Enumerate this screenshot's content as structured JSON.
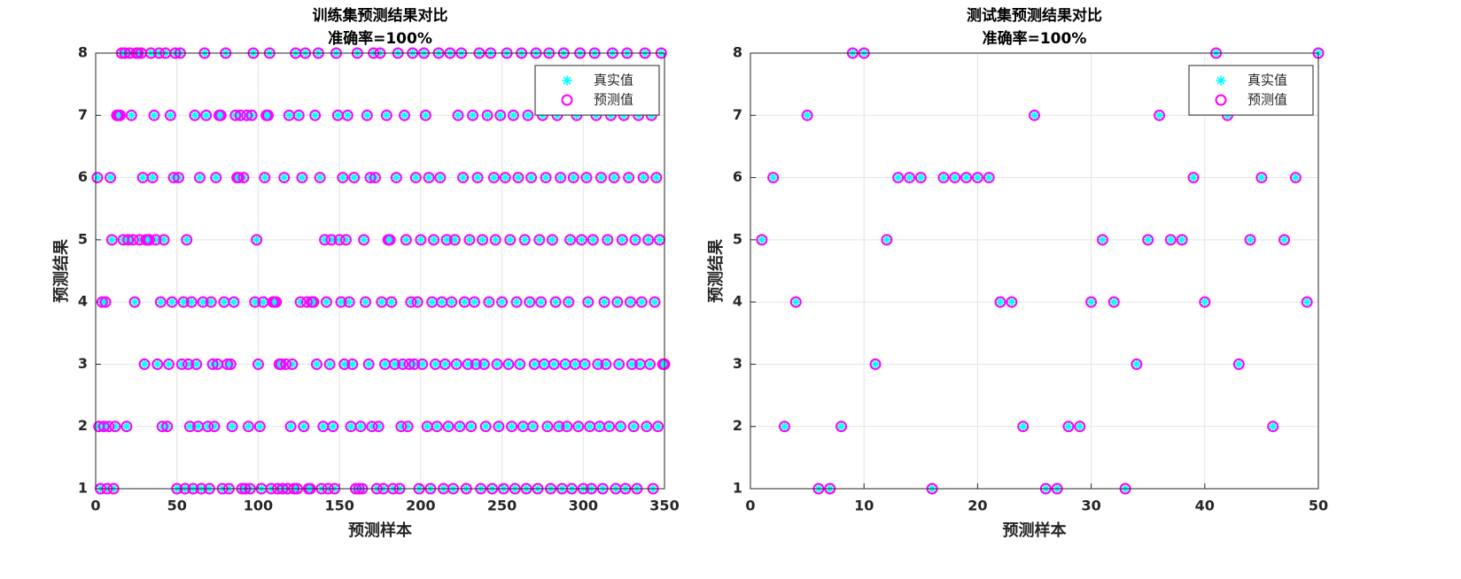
{
  "chart_data": [
    {
      "type": "scatter",
      "title": "训练集预测结果对比",
      "subtitle": "准确率=100%",
      "x_label": "预测样本",
      "y_label": "预测结果",
      "xlim": [
        0,
        350
      ],
      "xticks": [
        0,
        50,
        100,
        150,
        200,
        250,
        300,
        350
      ],
      "ylim": [
        1,
        8
      ],
      "yticks": [
        1,
        2,
        3,
        4,
        5,
        6,
        7,
        8
      ],
      "grid": true,
      "legend": "northeast",
      "x": [
        1,
        2,
        3,
        4,
        5,
        6,
        7,
        8,
        9,
        10,
        11,
        12,
        13,
        14,
        15,
        16,
        17,
        18,
        19,
        20,
        21,
        22,
        23,
        24,
        25,
        26,
        27,
        28,
        29,
        30,
        31,
        32,
        33,
        34,
        35,
        36,
        37,
        38,
        39,
        40,
        41,
        42,
        43,
        44,
        45,
        46,
        47,
        48,
        49,
        50,
        51,
        52,
        53,
        54,
        55,
        56,
        57,
        58,
        59,
        60,
        61,
        62,
        63,
        64,
        65,
        66,
        67,
        68,
        69,
        70,
        71,
        72,
        73,
        74,
        75,
        76,
        77,
        78,
        79,
        80,
        81,
        82,
        83,
        84,
        85,
        86,
        87,
        88,
        89,
        90,
        91,
        92,
        93,
        94,
        95,
        96,
        97,
        98,
        99,
        100,
        101,
        102,
        103,
        104,
        105,
        106,
        107,
        108,
        109,
        110,
        111,
        112,
        113,
        114,
        115,
        116,
        117,
        118,
        119,
        120,
        121,
        122,
        123,
        124,
        125,
        126,
        127,
        128,
        129,
        130,
        131,
        132,
        133,
        134,
        135,
        136,
        137,
        138,
        139,
        140,
        141,
        142,
        143,
        144,
        145,
        146,
        147,
        148,
        149,
        150,
        151,
        152,
        153,
        154,
        155,
        156,
        157,
        158,
        159,
        160,
        161,
        162,
        163,
        164,
        165,
        166,
        167,
        168,
        169,
        170,
        171,
        172,
        173,
        174,
        175,
        176,
        177,
        178,
        179,
        180,
        181,
        182,
        183,
        184,
        185,
        186,
        187,
        188,
        189,
        190,
        191,
        192,
        193,
        194,
        195,
        196,
        197,
        198,
        199,
        200,
        201,
        202,
        203,
        204,
        205,
        206,
        207,
        208,
        209,
        210,
        211,
        212,
        213,
        214,
        215,
        216,
        217,
        218,
        219,
        220,
        221,
        222,
        223,
        224,
        225,
        226,
        227,
        228,
        229,
        230,
        231,
        232,
        233,
        234,
        235,
        236,
        237,
        238,
        239,
        240,
        241,
        242,
        243,
        244,
        245,
        246,
        247,
        248,
        249,
        250,
        251,
        252,
        253,
        254,
        255,
        256,
        257,
        258,
        259,
        260,
        261,
        262,
        263,
        264,
        265,
        266,
        267,
        268,
        269,
        270,
        271,
        272,
        273,
        274,
        275,
        276,
        277,
        278,
        279,
        280,
        281,
        282,
        283,
        284,
        285,
        286,
        287,
        288,
        289,
        290,
        291,
        292,
        293,
        294,
        295,
        296,
        297,
        298,
        299,
        300,
        301,
        302,
        303,
        304,
        305,
        306,
        307,
        308,
        309,
        310,
        311,
        312,
        313,
        314,
        315,
        316,
        317,
        318,
        319,
        320,
        321,
        322,
        323,
        324,
        325,
        326,
        327,
        328,
        329,
        330,
        331,
        332,
        333,
        334,
        335,
        336,
        337,
        338,
        339,
        340,
        341,
        342,
        343,
        344,
        345,
        346,
        347,
        348,
        349,
        350
      ],
      "series": [
        {
          "name": "真实值",
          "color": "#00ffff",
          "marker": "asterisk",
          "values": [
            6,
            2,
            1,
            4,
            2,
            4,
            1,
            2,
            6,
            5,
            1,
            2,
            7,
            7,
            7,
            8,
            5,
            8,
            2,
            5,
            8,
            7,
            5,
            4,
            8,
            8,
            5,
            8,
            6,
            3,
            5,
            5,
            5,
            8,
            6,
            7,
            5,
            3,
            8,
            4,
            2,
            5,
            8,
            2,
            3,
            7,
            4,
            6,
            8,
            1,
            6,
            8,
            3,
            4,
            1,
            5,
            3,
            2,
            4,
            1,
            7,
            3,
            2,
            6,
            1,
            4,
            8,
            7,
            2,
            1,
            4,
            3,
            2,
            6,
            3,
            7,
            7,
            1,
            4,
            8,
            3,
            1,
            3,
            2,
            4,
            7,
            6,
            6,
            7,
            1,
            6,
            1,
            7,
            2,
            1,
            7,
            8,
            4,
            5,
            3,
            2,
            1,
            4,
            6,
            7,
            7,
            8,
            1,
            4,
            4,
            4,
            1,
            3,
            3,
            1,
            6,
            3,
            1,
            7,
            2,
            3,
            1,
            8,
            1,
            7,
            4,
            6,
            2,
            8,
            4,
            1,
            1,
            4,
            4,
            7,
            3,
            8,
            6,
            1,
            2,
            5,
            4,
            1,
            3,
            5,
            2,
            1,
            8,
            7,
            5,
            4,
            6,
            3,
            5,
            7,
            4,
            2,
            3,
            6,
            1,
            8,
            1,
            2,
            1,
            5,
            4,
            7,
            3,
            6,
            2,
            8,
            6,
            1,
            2,
            8,
            4,
            1,
            3,
            7,
            5,
            5,
            4,
            1,
            3,
            6,
            8,
            1,
            2,
            3,
            7,
            5,
            2,
            3,
            4,
            8,
            3,
            6,
            4,
            1,
            5,
            3,
            8,
            7,
            2,
            6,
            1,
            4,
            5,
            3,
            2,
            8,
            6,
            4,
            1,
            3,
            5,
            2,
            8,
            4,
            1,
            5,
            3,
            7,
            2,
            8,
            6,
            4,
            1,
            3,
            5,
            2,
            7,
            4,
            3,
            6,
            8,
            1,
            5,
            3,
            2,
            7,
            4,
            8,
            1,
            6,
            5,
            3,
            2,
            7,
            4,
            1,
            6,
            8,
            3,
            5,
            2,
            7,
            1,
            4,
            6,
            3,
            8,
            2,
            5,
            1,
            7,
            4,
            6,
            2,
            3,
            8,
            1,
            5,
            4,
            7,
            3,
            6,
            2,
            8,
            1,
            5,
            3,
            4,
            7,
            2,
            6,
            1,
            8,
            3,
            2,
            4,
            5,
            1,
            6,
            3,
            7,
            2,
            8,
            5,
            1,
            3,
            6,
            4,
            2,
            1,
            5,
            8,
            7,
            3,
            2,
            6,
            1,
            4,
            3,
            5,
            2,
            7,
            8,
            6,
            1,
            4,
            3,
            2,
            5,
            7,
            1,
            8,
            6,
            4,
            3,
            2,
            5,
            1,
            7,
            3,
            4,
            6,
            8,
            2,
            5,
            3,
            7,
            1,
            4,
            6,
            2,
            5,
            8,
            3,
            3
          ]
        },
        {
          "name": "预测值",
          "color": "#ff00ff",
          "marker": "circle",
          "values": [
            6,
            2,
            1,
            4,
            2,
            4,
            1,
            2,
            6,
            5,
            1,
            2,
            7,
            7,
            7,
            8,
            5,
            8,
            2,
            5,
            8,
            7,
            5,
            4,
            8,
            8,
            5,
            8,
            6,
            3,
            5,
            5,
            5,
            8,
            6,
            7,
            5,
            3,
            8,
            4,
            2,
            5,
            8,
            2,
            3,
            7,
            4,
            6,
            8,
            1,
            6,
            8,
            3,
            4,
            1,
            5,
            3,
            2,
            4,
            1,
            7,
            3,
            2,
            6,
            1,
            4,
            8,
            7,
            2,
            1,
            4,
            3,
            2,
            6,
            3,
            7,
            7,
            1,
            4,
            8,
            3,
            1,
            3,
            2,
            4,
            7,
            6,
            6,
            7,
            1,
            6,
            1,
            7,
            2,
            1,
            7,
            8,
            4,
            5,
            3,
            2,
            1,
            4,
            6,
            7,
            7,
            8,
            1,
            4,
            4,
            4,
            1,
            3,
            3,
            1,
            6,
            3,
            1,
            7,
            2,
            3,
            1,
            8,
            1,
            7,
            4,
            6,
            2,
            8,
            4,
            1,
            1,
            4,
            4,
            7,
            3,
            8,
            6,
            1,
            2,
            5,
            4,
            1,
            3,
            5,
            2,
            1,
            8,
            7,
            5,
            4,
            6,
            3,
            5,
            7,
            4,
            2,
            3,
            6,
            1,
            8,
            1,
            2,
            1,
            5,
            4,
            7,
            3,
            6,
            2,
            8,
            6,
            1,
            2,
            8,
            4,
            1,
            3,
            7,
            5,
            5,
            4,
            1,
            3,
            6,
            8,
            1,
            2,
            3,
            7,
            5,
            2,
            3,
            4,
            8,
            3,
            6,
            4,
            1,
            5,
            3,
            8,
            7,
            2,
            6,
            1,
            4,
            5,
            3,
            2,
            8,
            6,
            4,
            1,
            3,
            5,
            2,
            8,
            4,
            1,
            5,
            3,
            7,
            2,
            8,
            6,
            4,
            1,
            3,
            5,
            2,
            7,
            4,
            3,
            6,
            8,
            1,
            5,
            3,
            2,
            7,
            4,
            8,
            1,
            6,
            5,
            3,
            2,
            7,
            4,
            1,
            6,
            8,
            3,
            5,
            2,
            7,
            1,
            4,
            6,
            3,
            8,
            2,
            5,
            1,
            7,
            4,
            6,
            2,
            3,
            8,
            1,
            5,
            4,
            7,
            3,
            6,
            2,
            8,
            1,
            5,
            3,
            4,
            7,
            2,
            6,
            1,
            8,
            3,
            2,
            4,
            5,
            1,
            6,
            3,
            7,
            2,
            8,
            5,
            1,
            3,
            6,
            4,
            2,
            1,
            5,
            8,
            7,
            3,
            2,
            6,
            1,
            4,
            3,
            5,
            2,
            7,
            8,
            6,
            1,
            4,
            3,
            2,
            5,
            7,
            1,
            8,
            6,
            4,
            3,
            2,
            5,
            1,
            7,
            3,
            4,
            6,
            8,
            2,
            5,
            3,
            7,
            1,
            4,
            6,
            2,
            5,
            8,
            3,
            3
          ]
        }
      ]
    },
    {
      "type": "scatter",
      "title": "测试集预测结果对比",
      "subtitle": "准确率=100%",
      "x_label": "预测样本",
      "y_label": "预测结果",
      "xlim": [
        0,
        50
      ],
      "xticks": [
        0,
        10,
        20,
        30,
        40,
        50
      ],
      "ylim": [
        1,
        8
      ],
      "yticks": [
        1,
        2,
        3,
        4,
        5,
        6,
        7,
        8
      ],
      "grid": true,
      "legend": "northeast",
      "x": [
        1,
        2,
        3,
        4,
        5,
        6,
        7,
        8,
        9,
        10,
        11,
        12,
        13,
        14,
        15,
        16,
        17,
        18,
        19,
        20,
        21,
        22,
        23,
        24,
        25,
        26,
        27,
        28,
        29,
        30,
        31,
        32,
        33,
        34,
        35,
        36,
        37,
        38,
        39,
        40,
        41,
        42,
        43,
        44,
        45,
        46,
        47,
        48,
        49,
        50
      ],
      "series": [
        {
          "name": "真实值",
          "color": "#00ffff",
          "marker": "asterisk",
          "values": [
            5,
            6,
            2,
            4,
            7,
            1,
            1,
            2,
            8,
            8,
            3,
            5,
            6,
            6,
            6,
            1,
            6,
            6,
            6,
            6,
            6,
            4,
            4,
            2,
            7,
            1,
            1,
            2,
            2,
            4,
            5,
            4,
            1,
            3,
            5,
            7,
            5,
            5,
            6,
            4,
            8,
            7,
            3,
            5,
            6,
            2,
            5,
            6,
            4,
            8
          ]
        },
        {
          "name": "预测值",
          "color": "#ff00ff",
          "marker": "circle",
          "values": [
            5,
            6,
            2,
            4,
            7,
            1,
            1,
            2,
            8,
            8,
            3,
            5,
            6,
            6,
            6,
            1,
            6,
            6,
            6,
            6,
            6,
            4,
            4,
            2,
            7,
            1,
            1,
            2,
            2,
            4,
            5,
            4,
            1,
            3,
            5,
            7,
            5,
            5,
            6,
            4,
            8,
            7,
            3,
            5,
            6,
            2,
            5,
            6,
            4,
            8
          ]
        }
      ]
    }
  ]
}
